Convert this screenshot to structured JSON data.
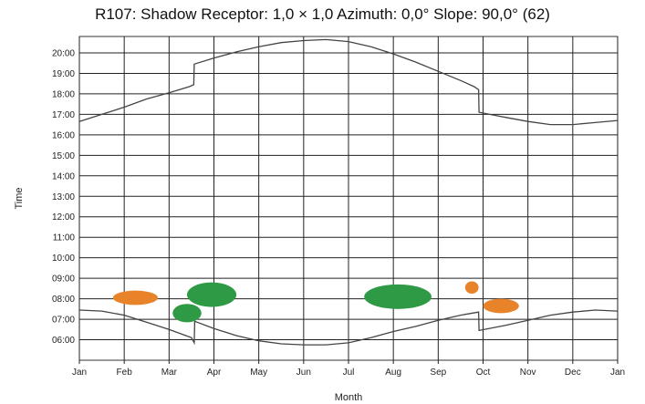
{
  "chart_data": {
    "type": "line",
    "title": "R107: Shadow  Receptor: 1,0 × 1,0  Azimuth: 0,0°  Slope: 90,0° (62)",
    "xlabel": "Month",
    "ylabel": "Time",
    "x_ticks": [
      "Jan",
      "Feb",
      "Mar",
      "Apr",
      "May",
      "Jun",
      "Jul",
      "Aug",
      "Sep",
      "Oct",
      "Nov",
      "Dec",
      "Jan"
    ],
    "y_ticks": [
      "06:00",
      "07:00",
      "08:00",
      "09:00",
      "10:00",
      "11:00",
      "12:00",
      "13:00",
      "14:00",
      "15:00",
      "16:00",
      "17:00",
      "18:00",
      "19:00",
      "20:00"
    ],
    "xlim": [
      0,
      12
    ],
    "ylim": [
      5.0,
      20.8
    ],
    "grid": true,
    "series": [
      {
        "role": "sunset",
        "color": "#444444",
        "points": [
          [
            0,
            16.65
          ],
          [
            0.5,
            17.0
          ],
          [
            1,
            17.35
          ],
          [
            1.5,
            17.75
          ],
          [
            2,
            18.05
          ],
          [
            2.45,
            18.35
          ],
          [
            2.55,
            18.45
          ],
          [
            2.56,
            19.45
          ],
          [
            3,
            19.75
          ],
          [
            3.5,
            20.05
          ],
          [
            4,
            20.3
          ],
          [
            4.5,
            20.5
          ],
          [
            5,
            20.6
          ],
          [
            5.5,
            20.65
          ],
          [
            6,
            20.55
          ],
          [
            6.5,
            20.3
          ],
          [
            7,
            19.95
          ],
          [
            7.5,
            19.55
          ],
          [
            8,
            19.1
          ],
          [
            8.5,
            18.65
          ],
          [
            8.8,
            18.35
          ],
          [
            8.9,
            18.2
          ],
          [
            8.91,
            17.1
          ],
          [
            9.5,
            16.85
          ],
          [
            10,
            16.65
          ],
          [
            10.5,
            16.5
          ],
          [
            11,
            16.5
          ],
          [
            11.5,
            16.6
          ],
          [
            12,
            16.7
          ]
        ]
      },
      {
        "role": "sunrise",
        "color": "#444444",
        "points": [
          [
            0,
            7.45
          ],
          [
            0.5,
            7.4
          ],
          [
            1,
            7.2
          ],
          [
            1.5,
            6.85
          ],
          [
            2,
            6.5
          ],
          [
            2.5,
            6.1
          ],
          [
            2.56,
            5.85
          ],
          [
            2.57,
            6.9
          ],
          [
            3,
            6.55
          ],
          [
            3.5,
            6.2
          ],
          [
            4,
            5.95
          ],
          [
            4.5,
            5.8
          ],
          [
            5,
            5.75
          ],
          [
            5.5,
            5.75
          ],
          [
            6,
            5.85
          ],
          [
            6.5,
            6.1
          ],
          [
            7,
            6.4
          ],
          [
            7.5,
            6.65
          ],
          [
            8,
            6.95
          ],
          [
            8.5,
            7.2
          ],
          [
            8.9,
            7.35
          ],
          [
            8.91,
            6.45
          ],
          [
            9.5,
            6.7
          ],
          [
            10,
            6.95
          ],
          [
            10.5,
            7.2
          ],
          [
            11,
            7.35
          ],
          [
            11.5,
            7.45
          ],
          [
            12,
            7.4
          ]
        ]
      }
    ],
    "shadow_regions": [
      {
        "color": "#E8832A",
        "center": [
          1.25,
          8.05
        ],
        "radius": [
          0.5,
          0.35
        ]
      },
      {
        "color": "#2E9A46",
        "center": [
          2.4,
          7.3
        ],
        "radius": [
          0.32,
          0.45
        ]
      },
      {
        "color": "#2E9A46",
        "center": [
          2.95,
          8.2
        ],
        "radius": [
          0.55,
          0.6
        ]
      },
      {
        "color": "#2E9A46",
        "center": [
          7.1,
          8.1
        ],
        "radius": [
          0.75,
          0.6
        ]
      },
      {
        "color": "#E8832A",
        "center": [
          8.75,
          8.55
        ],
        "radius": [
          0.15,
          0.3
        ]
      },
      {
        "color": "#E8832A",
        "center": [
          9.4,
          7.65
        ],
        "radius": [
          0.4,
          0.35
        ]
      }
    ]
  }
}
